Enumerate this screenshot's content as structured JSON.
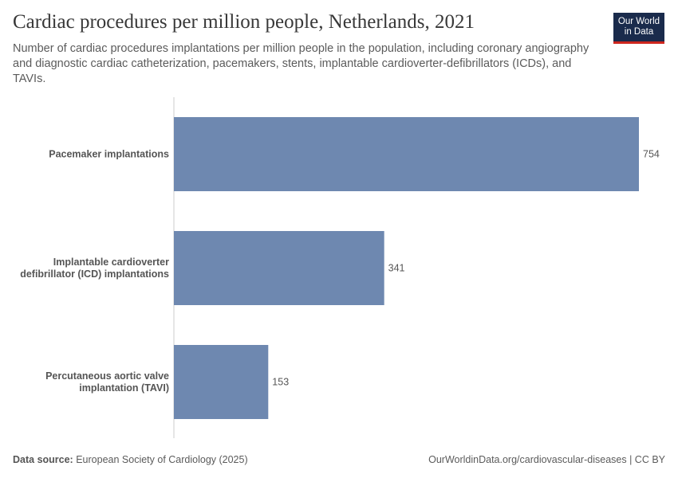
{
  "header": {
    "title": "Cardiac procedures per million people, Netherlands, 2021",
    "subtitle": "Number of cardiac procedures implantations per million people in the population, including coronary angiography and diagnostic cardiac catheterization, pacemakers, stents, implantable cardioverter-defibrillators (ICDs), and TAVIs.",
    "logo": "Our World in Data"
  },
  "footer": {
    "source_label": "Data source:",
    "source": "European Society of Cardiology (2025)",
    "url": "OurWorldinData.org/cardiovascular-diseases | CC BY"
  },
  "chart_data": {
    "type": "bar",
    "orientation": "horizontal",
    "title": "Cardiac procedures per million people, Netherlands, 2021",
    "categories": [
      [
        "Pacemaker implantations"
      ],
      [
        "Implantable cardioverter",
        "defibrillator (ICD) implantations"
      ],
      [
        "Percutaneous aortic valve",
        "implantation (TAVI)"
      ]
    ],
    "values": [
      754,
      341,
      153
    ],
    "color": "#6e88b0",
    "grid": false
  }
}
